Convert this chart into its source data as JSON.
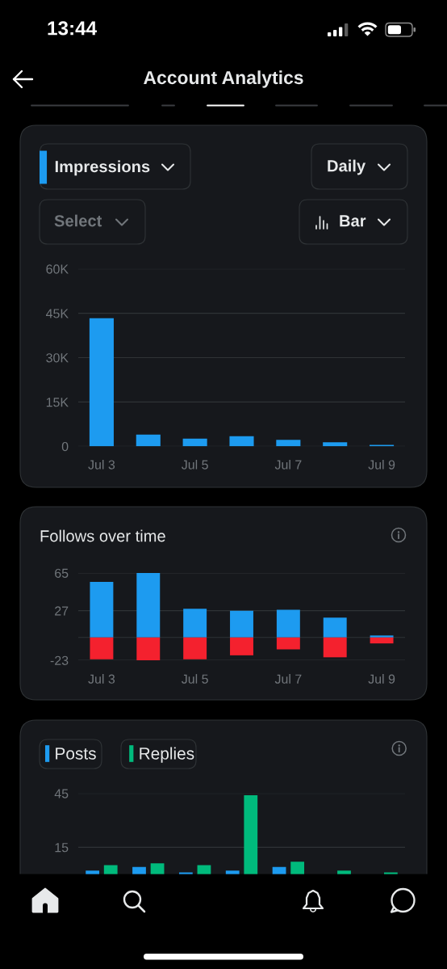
{
  "chart_data": [
    {
      "type": "other",
      "title": "Account Analytics",
      "annotations": [
        "13:44"
      ]
    },
    {
      "type": "bar",
      "series": [
        {
          "name": "Impressions",
          "color": "#1d9bf0",
          "values": [
            43300,
            4000,
            2600,
            3400,
            2200,
            1400,
            500
          ]
        }
      ],
      "categories": [
        "Jul 3",
        null,
        "Jul 5",
        null,
        "Jul 7",
        null,
        "Jul 9"
      ],
      "ylim": [
        0,
        60000
      ],
      "yticks": [
        0,
        {
          "value": 15000,
          "label": "15K"
        },
        {
          "value": 30000,
          "label": "30K"
        },
        {
          "value": 45000,
          "label": "45K"
        },
        {
          "value": 60000,
          "label": "60K"
        }
      ],
      "grid": "y",
      "legend": "top left",
      "annotations": [
        "Daily",
        "Select",
        "Bar"
      ]
    },
    {
      "type": "bar",
      "title": "Follows over time",
      "stacked": true,
      "series": [
        {
          "color": "#1d9bf0",
          "values": [
            56,
            65,
            29,
            27,
            28,
            20,
            2
          ]
        },
        {
          "color": "#f4212e",
          "values": [
            -22,
            -23,
            -22,
            -18,
            -12,
            -20,
            -6
          ]
        }
      ],
      "categories": [
        "Jul 3",
        null,
        "Jul 5",
        null,
        "Jul 7",
        null,
        "Jul 9"
      ],
      "ylim": [
        -23,
        65
      ],
      "yticks": [
        65,
        27,
        {
          "value": 0,
          "label": null
        },
        -23
      ],
      "grid": "y"
    },
    {
      "type": "bar",
      "series": [
        {
          "name": "Posts",
          "color": "#1d9bf0",
          "values": [
            2,
            4,
            1,
            2,
            4,
            0,
            0
          ]
        },
        {
          "name": "Replies",
          "color": "#00ba7c",
          "values": [
            5,
            6,
            5,
            44,
            7,
            2,
            1
          ]
        }
      ],
      "categories": [
        null,
        null,
        null,
        null,
        null,
        null,
        null
      ],
      "ylim": [
        0,
        45
      ],
      "yticks": [
        45,
        15
      ],
      "grid": "y",
      "legend": "top left",
      "tick_labels": "y"
    }
  ]
}
